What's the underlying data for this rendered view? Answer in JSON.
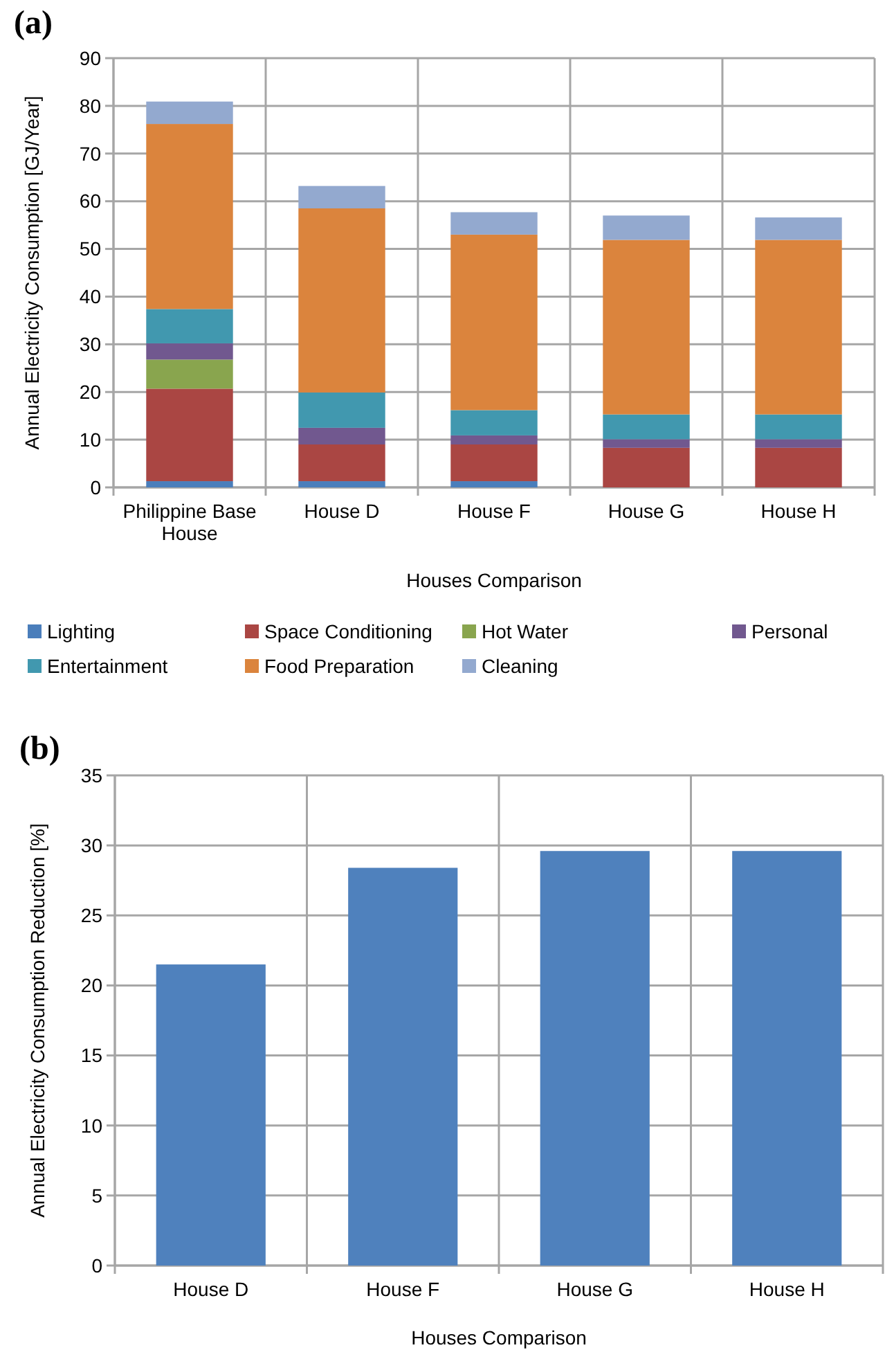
{
  "chart_data": [
    {
      "type": "bar",
      "title": "(a)",
      "xlabel": "Houses Comparison",
      "ylabel": "Annual Electricity Consumption [GJ/Year]",
      "categories": [
        "Philippine Base House",
        "House D",
        "House F",
        "House G",
        "House H"
      ],
      "stacked": true,
      "ylim": [
        0,
        90
      ],
      "yticks": [
        0,
        10,
        20,
        30,
        40,
        50,
        60,
        70,
        80,
        90
      ],
      "grid": true,
      "legend": "bottom",
      "series": [
        {
          "name": "Lighting",
          "color": "#4a7ebb",
          "values": [
            1.3,
            1.3,
            1.3,
            0,
            0
          ]
        },
        {
          "name": "Space Conditioning",
          "color": "#aa4643",
          "values": [
            19.4,
            7.7,
            7.7,
            8.3,
            8.3
          ]
        },
        {
          "name": "Hot Water",
          "color": "#89a54e",
          "values": [
            6.1,
            0,
            0,
            0,
            0
          ]
        },
        {
          "name": "Personal",
          "color": "#71588f",
          "values": [
            3.4,
            3.5,
            1.9,
            1.8,
            1.8
          ]
        },
        {
          "name": "Entertainment",
          "color": "#4198af",
          "values": [
            7.2,
            7.4,
            5.3,
            5.2,
            5.2
          ]
        },
        {
          "name": "Food Preparation",
          "color": "#db843d",
          "values": [
            38.8,
            38.6,
            36.8,
            36.6,
            36.6
          ]
        },
        {
          "name": "Cleaning",
          "color": "#93a9cf",
          "values": [
            4.7,
            4.7,
            4.7,
            5.1,
            4.7
          ]
        }
      ]
    },
    {
      "type": "bar",
      "title": "(b)",
      "xlabel": "Houses Comparison",
      "ylabel": "Annual Electricity Consumption Reduction [%]",
      "categories": [
        "House D",
        "House F",
        "House G",
        "House H"
      ],
      "ylim": [
        0,
        35
      ],
      "yticks": [
        0,
        5,
        10,
        15,
        20,
        25,
        30,
        35
      ],
      "grid": true,
      "series": [
        {
          "color": "#4f81bd",
          "values": [
            21.5,
            28.4,
            29.6,
            29.6
          ]
        }
      ]
    }
  ]
}
